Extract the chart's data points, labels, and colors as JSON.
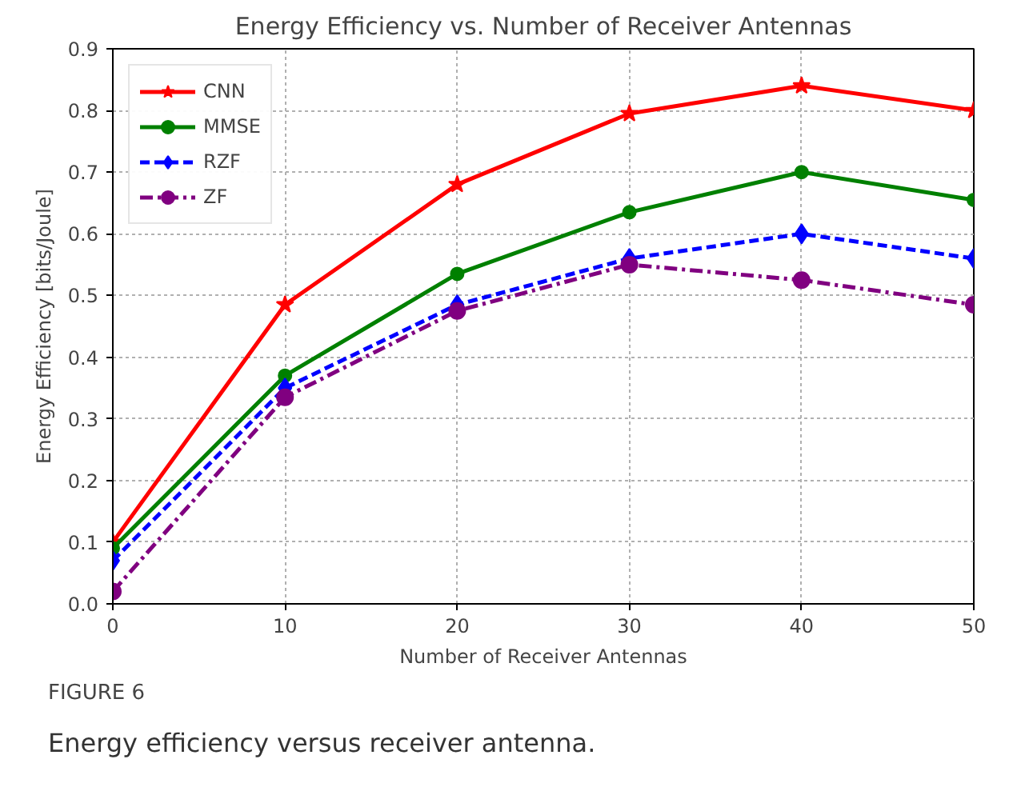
{
  "chart_data": {
    "type": "line",
    "title": "Energy Efficiency vs. Number of Receiver Antennas",
    "xlabel": "Number of Receiver Antennas",
    "ylabel": "Energy Efficiency [bits/Joule]",
    "x": [
      0,
      10,
      20,
      30,
      40,
      50
    ],
    "series": [
      {
        "name": "CNN",
        "color": "#ff0000",
        "marker": "star",
        "line_style": "solid",
        "values": [
          0.1,
          0.485,
          0.68,
          0.795,
          0.84,
          0.8
        ]
      },
      {
        "name": "MMSE",
        "color": "#008000",
        "marker": "circle",
        "line_style": "solid",
        "values": [
          0.09,
          0.37,
          0.535,
          0.635,
          0.7,
          0.655
        ]
      },
      {
        "name": "RZF",
        "color": "#0000ff",
        "marker": "diamond",
        "line_style": "dashed",
        "values": [
          0.07,
          0.35,
          0.485,
          0.56,
          0.6,
          0.56
        ]
      },
      {
        "name": "ZF",
        "color": "#800080",
        "marker": "circle",
        "line_style": "dashdot",
        "values": [
          0.02,
          0.335,
          0.475,
          0.55,
          0.525,
          0.485
        ]
      }
    ],
    "xlim": [
      0,
      50
    ],
    "xticks": [
      0,
      10,
      20,
      30,
      40,
      50
    ],
    "ylim": [
      0,
      0.9
    ],
    "yticks": [
      {
        "value": 0,
        "label": "0.0"
      },
      0.1,
      0.2,
      0.3,
      0.4,
      0.5,
      0.6,
      0.7,
      0.8,
      0.9
    ],
    "grid": true,
    "legend": "top left",
    "annotations": [
      "FIGURE 6",
      "Energy efficiency versus receiver antenna."
    ]
  }
}
